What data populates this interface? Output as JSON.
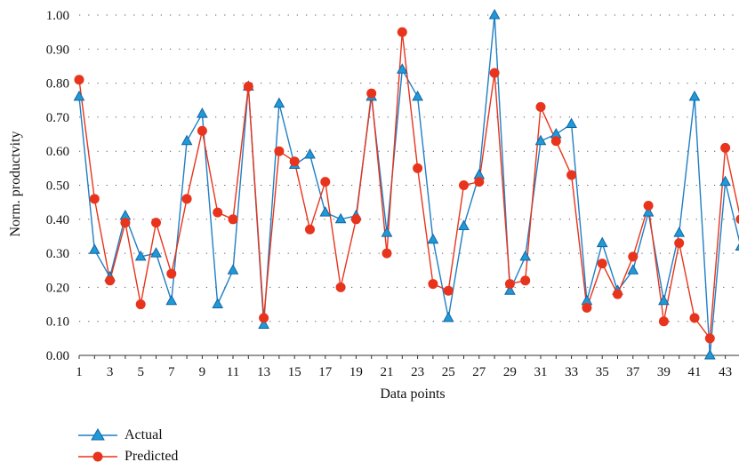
{
  "chart_data": {
    "type": "line",
    "xlabel": "Data points",
    "ylabel": "Norm. productvity",
    "ylim": [
      0,
      1
    ],
    "yticks": [
      "0.00",
      "0.10",
      "0.20",
      "0.30",
      "0.40",
      "0.50",
      "0.60",
      "0.70",
      "0.80",
      "0.90",
      "1.00"
    ],
    "xticks": [
      "1",
      "3",
      "5",
      "7",
      "9",
      "11",
      "13",
      "15",
      "17",
      "19",
      "21",
      "23",
      "25",
      "27",
      "29",
      "31",
      "33",
      "35",
      "37",
      "39",
      "41",
      "43"
    ],
    "grid": "horizontal dotted",
    "legend_placement": "bottom-left",
    "x": [
      1,
      2,
      3,
      4,
      5,
      6,
      7,
      8,
      9,
      10,
      11,
      12,
      13,
      14,
      15,
      16,
      17,
      18,
      19,
      20,
      21,
      22,
      23,
      24,
      25,
      26,
      27,
      28,
      29,
      30,
      31,
      32,
      33,
      34,
      35,
      36,
      37,
      38,
      39,
      40,
      41,
      42,
      43,
      44
    ],
    "series": [
      {
        "name": "Actual",
        "color": "#1f7fc4",
        "marker": "triangle",
        "values": [
          0.76,
          0.31,
          0.23,
          0.41,
          0.29,
          0.3,
          0.16,
          0.63,
          0.71,
          0.15,
          0.25,
          0.79,
          0.09,
          0.74,
          0.56,
          0.59,
          0.42,
          0.4,
          0.41,
          0.76,
          0.36,
          0.84,
          0.76,
          0.34,
          0.11,
          0.38,
          0.53,
          1.0,
          0.19,
          0.29,
          0.63,
          0.65,
          0.68,
          0.16,
          0.33,
          0.19,
          0.25,
          0.42,
          0.16,
          0.36,
          0.76,
          0.0,
          0.51,
          0.32
        ]
      },
      {
        "name": "Predicted",
        "color": "#e8341c",
        "marker": "circle",
        "values": [
          0.81,
          0.46,
          0.22,
          0.39,
          0.15,
          0.39,
          0.24,
          0.46,
          0.66,
          0.42,
          0.4,
          0.79,
          0.11,
          0.6,
          0.57,
          0.37,
          0.51,
          0.2,
          0.4,
          0.77,
          0.3,
          0.95,
          0.55,
          0.21,
          0.19,
          0.5,
          0.51,
          0.83,
          0.21,
          0.22,
          0.73,
          0.63,
          0.53,
          0.14,
          0.27,
          0.18,
          0.29,
          0.44,
          0.1,
          0.33,
          0.11,
          0.05,
          0.61,
          0.4
        ]
      }
    ]
  }
}
